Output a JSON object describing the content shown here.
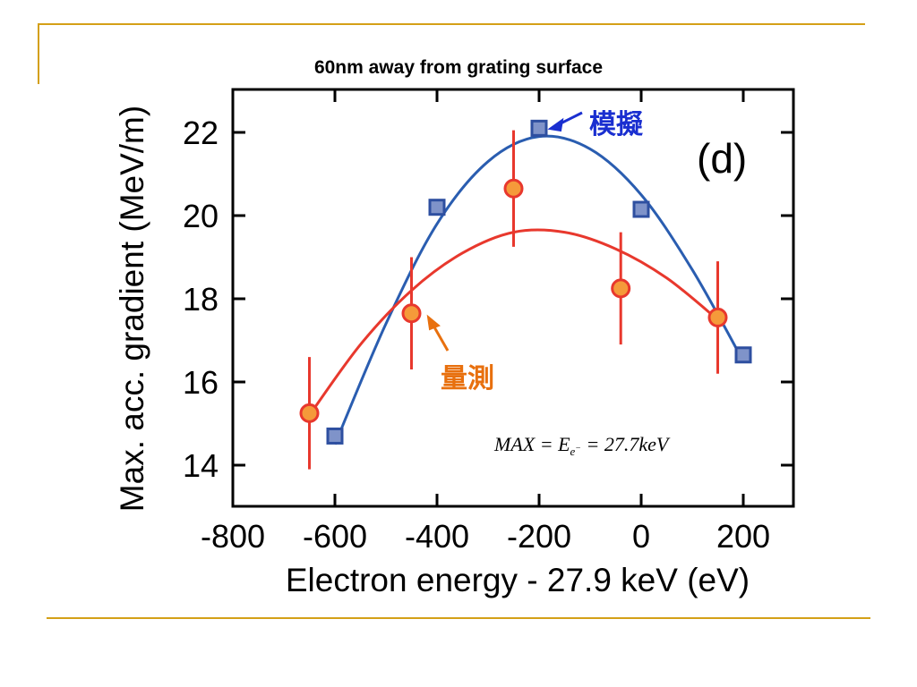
{
  "chart_data": {
    "type": "scatter",
    "title": "60nm away from grating surface",
    "xlabel": "Electron energy - 27.9 keV (eV)",
    "ylabel": "Max. acc. gradient (MeV/m)",
    "xlim": [
      -800,
      300
    ],
    "ylim": [
      13,
      23
    ],
    "x_ticks": [
      -800,
      -600,
      -400,
      -200,
      0,
      200
    ],
    "y_ticks": [
      14,
      16,
      18,
      20,
      22
    ],
    "panel_label": "(d)",
    "series": [
      {
        "name": "模擬",
        "color": "#2a5db0",
        "marker": "square",
        "x": [
          -600,
          -400,
          -200,
          0,
          200
        ],
        "y": [
          14.7,
          20.2,
          22.1,
          20.15,
          16.65
        ],
        "fit": {
          "x": [
            -600,
            -500,
            -400,
            -300,
            -200,
            -100,
            0,
            100,
            200
          ],
          "y": [
            14.5,
            17.4,
            19.8,
            21.3,
            21.9,
            21.6,
            20.5,
            18.7,
            16.5
          ]
        }
      },
      {
        "name": "量測",
        "color": "#e8382d",
        "marker": "circle",
        "x": [
          -650,
          -450,
          -250,
          -40,
          150
        ],
        "y": [
          15.25,
          17.65,
          20.65,
          18.25,
          17.55
        ],
        "yerr": [
          1.35,
          1.35,
          1.4,
          1.35,
          1.35
        ],
        "fit": {
          "x": [
            -650,
            -550,
            -450,
            -350,
            -250,
            -150,
            -50,
            50,
            150
          ],
          "y": [
            15.2,
            16.9,
            18.2,
            19.1,
            19.6,
            19.6,
            19.2,
            18.5,
            17.5
          ]
        }
      }
    ],
    "annotations": {
      "simulation": "模擬",
      "measurement": "量測",
      "formula": "MAX = E_e- = 27.7keV"
    }
  },
  "formula_parts": {
    "lhs": "MAX",
    "eq1": "=",
    "E": "E",
    "sub": "e",
    "sup": "−",
    "eq2": "=",
    "value": "27.7keV"
  }
}
